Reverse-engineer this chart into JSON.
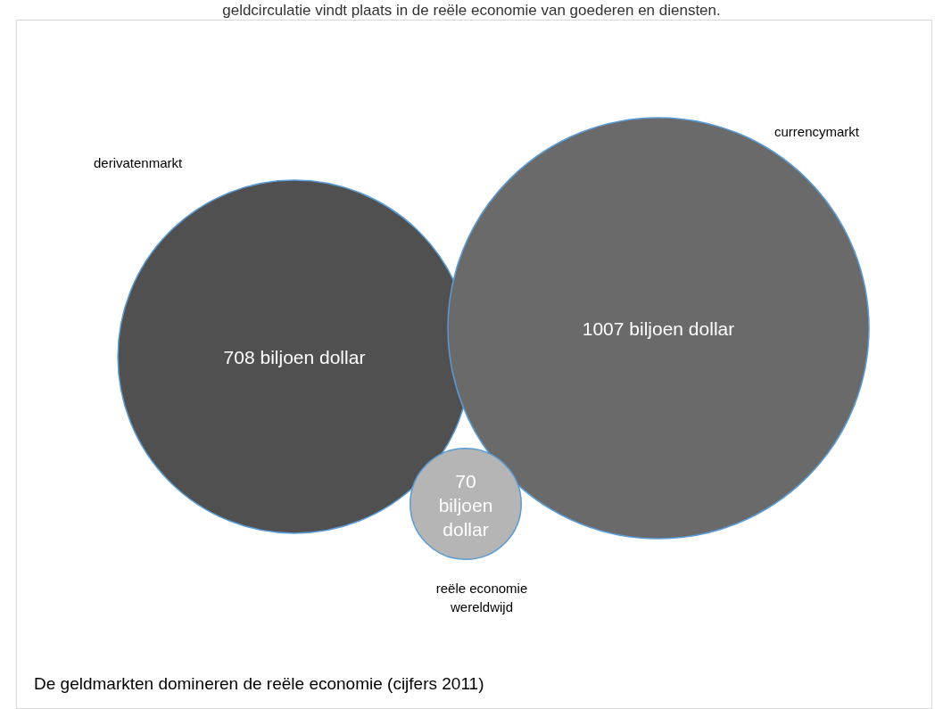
{
  "chart_data": {
    "type": "other",
    "title": "De geldmarkten domineren de reële economie (cijfers 2011)",
    "annotations": [
      "geldcirculatie vindt plaats in de reële economie van goederen en diensten."
    ],
    "categories": [
      "derivatenmarkt",
      "currencymarkt",
      "reële economie wereldwijd"
    ],
    "values": [
      708,
      1007,
      70
    ],
    "value_labels": [
      "708 biljoen dollar",
      "1007 biljoen dollar",
      "70 biljoen dollar"
    ],
    "colors": [
      "#505050",
      "#6a6a6a",
      "#b5b5b5"
    ]
  }
}
